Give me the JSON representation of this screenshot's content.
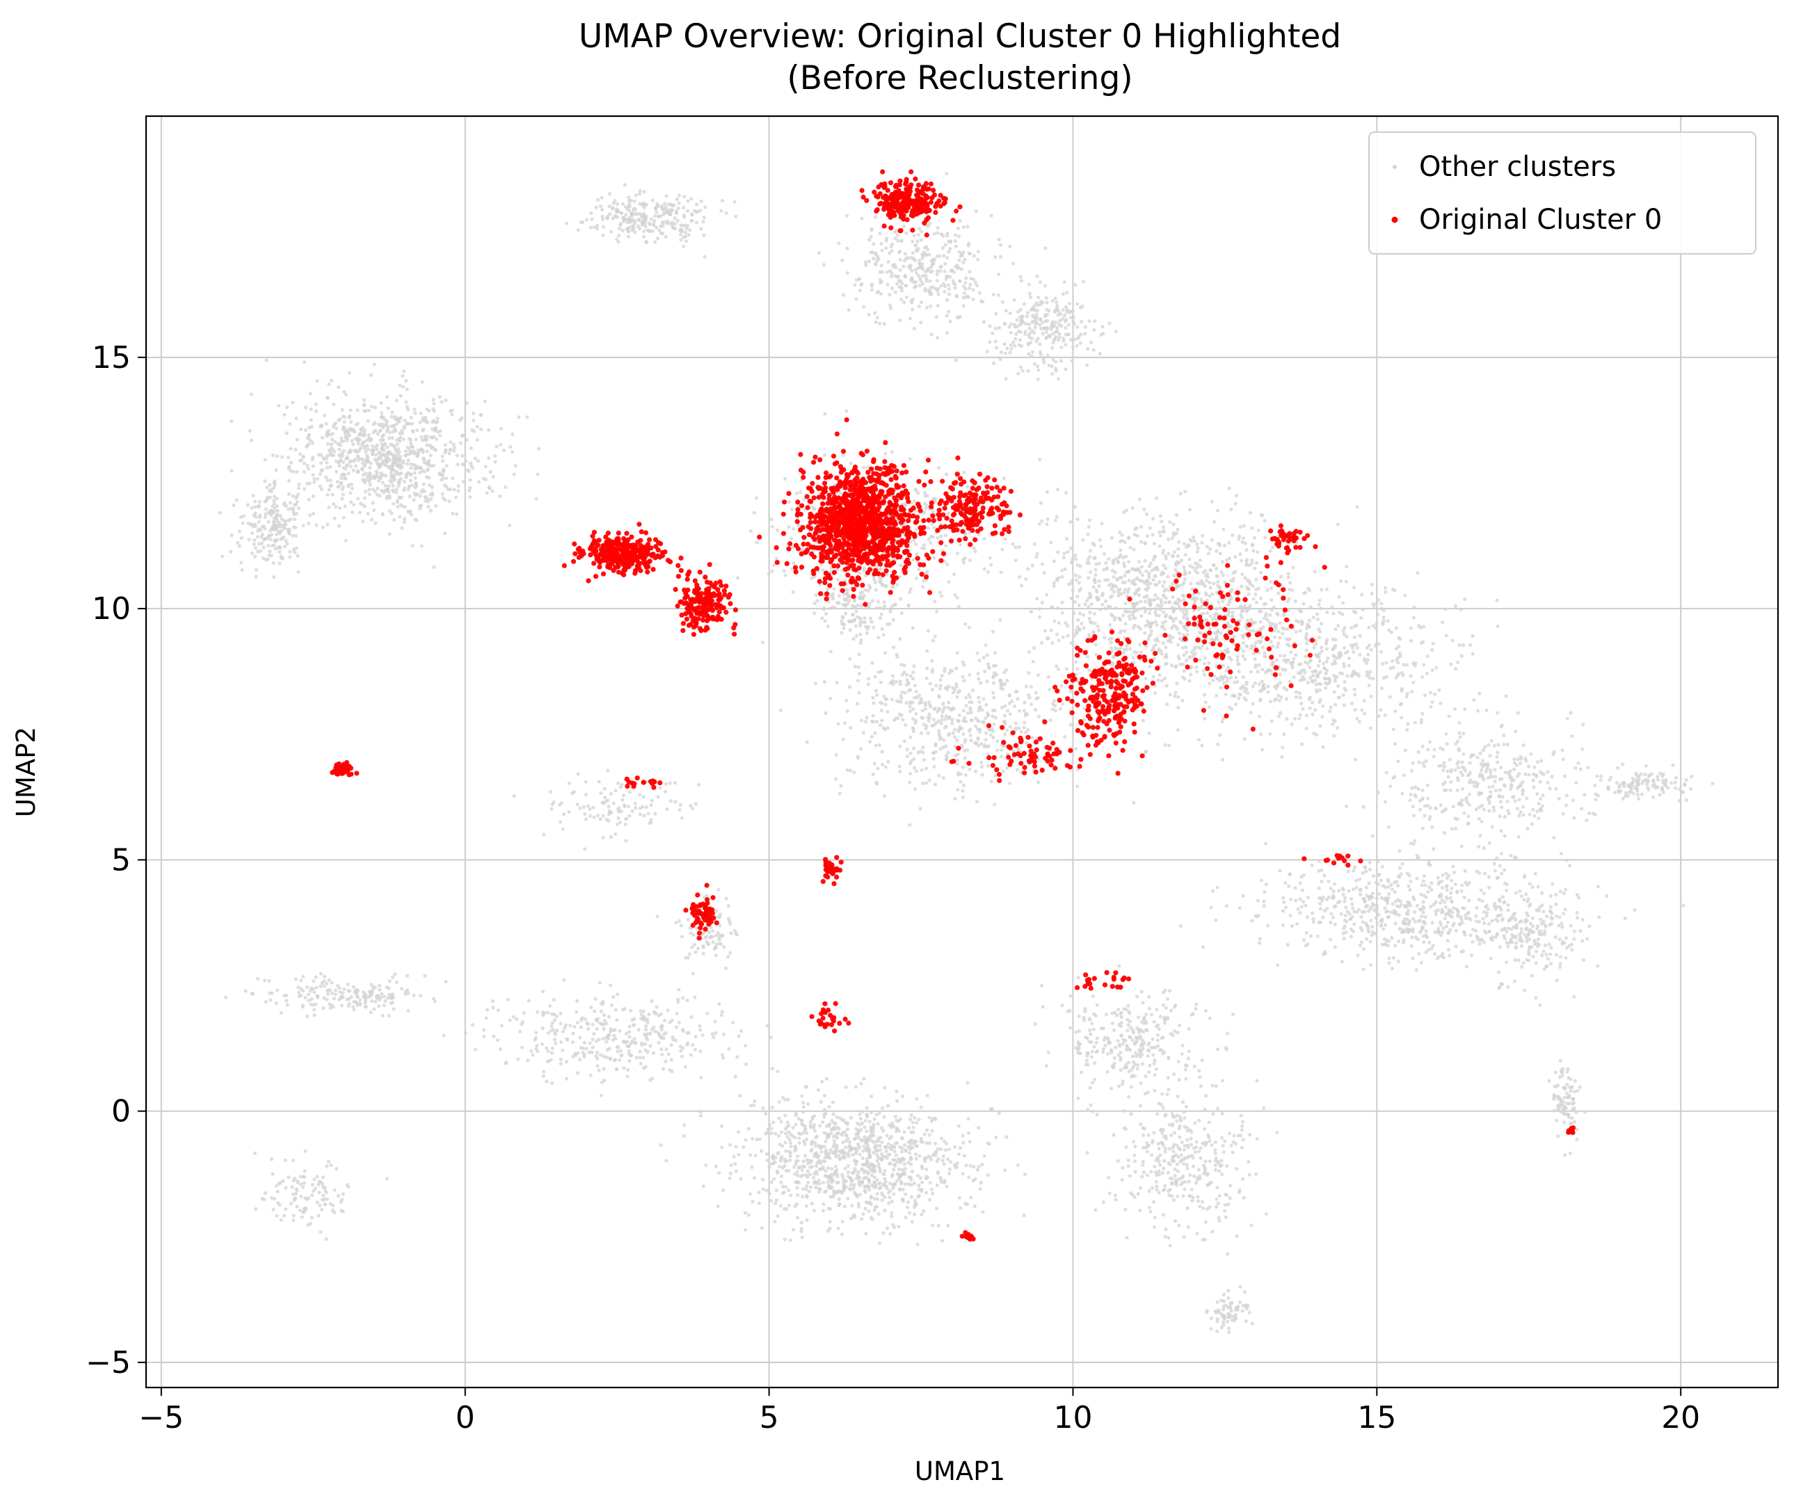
{
  "chart_data": {
    "type": "scatter",
    "title": "UMAP Overview: Original Cluster 0 Highlighted",
    "subtitle": "(Before Reclustering)",
    "xlabel": "UMAP1",
    "ylabel": "UMAP2",
    "xlim": [
      -5.25,
      21.6
    ],
    "ylim": [
      -5.5,
      19.8
    ],
    "xticks": [
      -5,
      0,
      5,
      10,
      15,
      20
    ],
    "yticks": [
      -5,
      0,
      5,
      10,
      15
    ],
    "xtick_labels": [
      "−5",
      "0",
      "5",
      "10",
      "15",
      "20"
    ],
    "ytick_labels": [
      "−5",
      "0",
      "5",
      "10",
      "15"
    ],
    "grid": true,
    "legend_position": "top-right",
    "series": [
      {
        "name": "Other clusters",
        "color": "#d3d3d3",
        "role": "background",
        "regions": [
          {
            "x": -1.3,
            "y": 13.0,
            "sx": 1.4,
            "sy": 1.0,
            "n": 900
          },
          {
            "x": -3.2,
            "y": 11.6,
            "sx": 0.4,
            "sy": 0.6,
            "n": 200
          },
          {
            "x": 3.0,
            "y": 17.8,
            "sx": 0.8,
            "sy": 0.4,
            "n": 260
          },
          {
            "x": 7.5,
            "y": 16.8,
            "sx": 1.0,
            "sy": 0.9,
            "n": 350
          },
          {
            "x": 9.5,
            "y": 15.6,
            "sx": 0.7,
            "sy": 0.7,
            "n": 250
          },
          {
            "x": 6.8,
            "y": 11.5,
            "sx": 1.4,
            "sy": 1.2,
            "n": 500
          },
          {
            "x": 11.5,
            "y": 10.2,
            "sx": 1.8,
            "sy": 1.5,
            "n": 1000
          },
          {
            "x": 13.8,
            "y": 9.0,
            "sx": 2.0,
            "sy": 1.2,
            "n": 650
          },
          {
            "x": 8.0,
            "y": 7.8,
            "sx": 1.6,
            "sy": 1.2,
            "n": 550
          },
          {
            "x": 16.8,
            "y": 6.5,
            "sx": 1.4,
            "sy": 1.0,
            "n": 350
          },
          {
            "x": 19.4,
            "y": 6.5,
            "sx": 0.7,
            "sy": 0.25,
            "n": 110
          },
          {
            "x": 15.5,
            "y": 4.0,
            "sx": 2.0,
            "sy": 0.8,
            "n": 600
          },
          {
            "x": -2.0,
            "y": 2.3,
            "sx": 1.2,
            "sy": 0.3,
            "n": 180
          },
          {
            "x": 2.5,
            "y": 1.5,
            "sx": 1.6,
            "sy": 0.7,
            "n": 350
          },
          {
            "x": 6.4,
            "y": -1.0,
            "sx": 1.6,
            "sy": 1.0,
            "n": 1000
          },
          {
            "x": 11.8,
            "y": -1.0,
            "sx": 0.9,
            "sy": 1.2,
            "n": 350
          },
          {
            "x": 11.0,
            "y": 1.4,
            "sx": 1.0,
            "sy": 0.8,
            "n": 280
          },
          {
            "x": 12.6,
            "y": -4.0,
            "sx": 0.3,
            "sy": 0.3,
            "n": 70
          },
          {
            "x": -2.6,
            "y": -1.6,
            "sx": 0.6,
            "sy": 0.6,
            "n": 110
          },
          {
            "x": 2.5,
            "y": 6.1,
            "sx": 1.0,
            "sy": 0.5,
            "n": 110
          },
          {
            "x": 4.0,
            "y": 3.6,
            "sx": 0.4,
            "sy": 0.5,
            "n": 90
          },
          {
            "x": 18.1,
            "y": 0.2,
            "sx": 0.2,
            "sy": 0.6,
            "n": 90
          },
          {
            "x": 6.4,
            "y": 10.0,
            "sx": 0.5,
            "sy": 0.5,
            "n": 120
          },
          {
            "x": 17.6,
            "y": 3.5,
            "sx": 0.7,
            "sy": 0.9,
            "n": 180
          }
        ]
      },
      {
        "name": "Original Cluster 0",
        "color": "#ff0000",
        "role": "highlight",
        "regions": [
          {
            "x": 7.3,
            "y": 18.1,
            "sx": 0.45,
            "sy": 0.35,
            "n": 230
          },
          {
            "x": 6.5,
            "y": 11.7,
            "sx": 0.75,
            "sy": 0.9,
            "n": 1100
          },
          {
            "x": 8.3,
            "y": 12.0,
            "sx": 0.6,
            "sy": 0.5,
            "n": 180
          },
          {
            "x": 2.6,
            "y": 11.1,
            "sx": 0.55,
            "sy": 0.3,
            "n": 320
          },
          {
            "x": 3.9,
            "y": 10.1,
            "sx": 0.35,
            "sy": 0.5,
            "n": 180
          },
          {
            "x": 10.6,
            "y": 8.3,
            "sx": 0.55,
            "sy": 0.8,
            "n": 250
          },
          {
            "x": 13.5,
            "y": 11.4,
            "sx": 0.3,
            "sy": 0.25,
            "n": 40
          },
          {
            "x": -2.0,
            "y": 6.8,
            "sx": 0.15,
            "sy": 0.1,
            "n": 40
          },
          {
            "x": 3.9,
            "y": 3.9,
            "sx": 0.2,
            "sy": 0.3,
            "n": 60
          },
          {
            "x": 6.0,
            "y": 4.8,
            "sx": 0.15,
            "sy": 0.2,
            "n": 30
          },
          {
            "x": 6.0,
            "y": 1.8,
            "sx": 0.2,
            "sy": 0.2,
            "n": 25
          },
          {
            "x": 10.5,
            "y": 2.6,
            "sx": 0.35,
            "sy": 0.2,
            "n": 20
          },
          {
            "x": 2.9,
            "y": 6.5,
            "sx": 0.3,
            "sy": 0.1,
            "n": 15
          },
          {
            "x": 8.3,
            "y": -2.5,
            "sx": 0.1,
            "sy": 0.05,
            "n": 12
          },
          {
            "x": 18.2,
            "y": -0.4,
            "sx": 0.05,
            "sy": 0.08,
            "n": 10
          },
          {
            "x": 14.3,
            "y": 5.0,
            "sx": 0.3,
            "sy": 0.08,
            "n": 12
          },
          {
            "x": 9.2,
            "y": 7.1,
            "sx": 0.7,
            "sy": 0.4,
            "n": 70
          },
          {
            "x": 12.5,
            "y": 9.5,
            "sx": 1.0,
            "sy": 1.2,
            "n": 90
          }
        ]
      }
    ]
  }
}
